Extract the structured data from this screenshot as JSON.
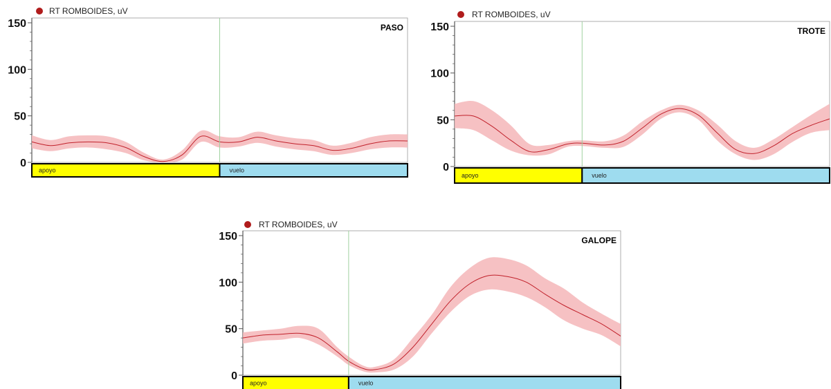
{
  "colors": {
    "series_line": "#c0202a",
    "band_fill": "#f4b6b8",
    "marker": "#b01c1c",
    "phase_divider": "#9fd19f",
    "apoyo_fill": "#ffff00",
    "vuelo_fill": "#9edcef"
  },
  "chart_data": [
    {
      "type": "line",
      "legend": "RT ROMBOIDES, uV",
      "panel_label": "PASO",
      "yticks": [
        "150",
        "100",
        "50",
        "0"
      ],
      "ylim": [
        0,
        150
      ],
      "xlim": [
        0,
        100
      ],
      "phase_split": 50,
      "phases": [
        "apoyo",
        "vuelo"
      ],
      "x": [
        0,
        5,
        10,
        15,
        20,
        25,
        30,
        35,
        40,
        45,
        50,
        55,
        60,
        65,
        70,
        75,
        80,
        85,
        90,
        95,
        100
      ],
      "mean": [
        22,
        18,
        21,
        22,
        21,
        16,
        6,
        1,
        8,
        28,
        22,
        22,
        27,
        23,
        20,
        18,
        13,
        15,
        20,
        23,
        23
      ],
      "upper": [
        29,
        24,
        28,
        29,
        28,
        22,
        10,
        3,
        13,
        34,
        28,
        27,
        33,
        29,
        26,
        24,
        18,
        21,
        27,
        30,
        30
      ],
      "lower": [
        15,
        12,
        15,
        16,
        14,
        10,
        2,
        0,
        3,
        22,
        16,
        17,
        21,
        17,
        14,
        12,
        8,
        10,
        14,
        16,
        16
      ]
    },
    {
      "type": "line",
      "legend": "RT ROMBOIDES, uV",
      "panel_label": "TROTE",
      "yticks": [
        "150",
        "100",
        "50",
        "0"
      ],
      "ylim": [
        0,
        150
      ],
      "xlim": [
        0,
        100
      ],
      "phase_split": 34,
      "phases": [
        "apoyo",
        "vuelo"
      ],
      "x": [
        0,
        5,
        10,
        15,
        20,
        25,
        30,
        34,
        40,
        45,
        50,
        55,
        60,
        65,
        70,
        75,
        80,
        85,
        90,
        95,
        100
      ],
      "mean": [
        54,
        54,
        43,
        28,
        16,
        18,
        24,
        25,
        23,
        27,
        41,
        56,
        62,
        55,
        36,
        18,
        14,
        22,
        35,
        44,
        51
      ],
      "upper": [
        67,
        70,
        60,
        44,
        24,
        23,
        27,
        28,
        27,
        33,
        48,
        60,
        66,
        60,
        45,
        27,
        20,
        29,
        42,
        55,
        67
      ],
      "lower": [
        41,
        39,
        28,
        17,
        12,
        13,
        21,
        22,
        20,
        21,
        34,
        51,
        58,
        50,
        28,
        13,
        7,
        13,
        26,
        36,
        39
      ]
    },
    {
      "type": "line",
      "legend": "RT ROMBOIDES, uV",
      "panel_label": "GALOPE",
      "yticks": [
        "150",
        "100",
        "50",
        "0"
      ],
      "ylim": [
        0,
        150
      ],
      "xlim": [
        0,
        100
      ],
      "phase_split": 28,
      "phases": [
        "apoyo",
        "vuelo"
      ],
      "x": [
        0,
        5,
        10,
        15,
        20,
        25,
        28,
        32,
        35,
        40,
        45,
        50,
        55,
        60,
        65,
        70,
        75,
        80,
        85,
        90,
        95,
        100
      ],
      "mean": [
        40,
        43,
        44,
        45,
        40,
        25,
        15,
        7,
        6,
        12,
        30,
        55,
        80,
        98,
        107,
        106,
        100,
        87,
        75,
        65,
        55,
        42
      ],
      "upper": [
        46,
        48,
        50,
        53,
        50,
        30,
        20,
        10,
        9,
        17,
        40,
        65,
        95,
        115,
        126,
        125,
        118,
        104,
        93,
        78,
        66,
        55
      ],
      "lower": [
        34,
        37,
        38,
        40,
        33,
        20,
        11,
        4,
        3,
        6,
        20,
        45,
        68,
        85,
        92,
        90,
        84,
        73,
        59,
        50,
        43,
        31
      ]
    }
  ]
}
